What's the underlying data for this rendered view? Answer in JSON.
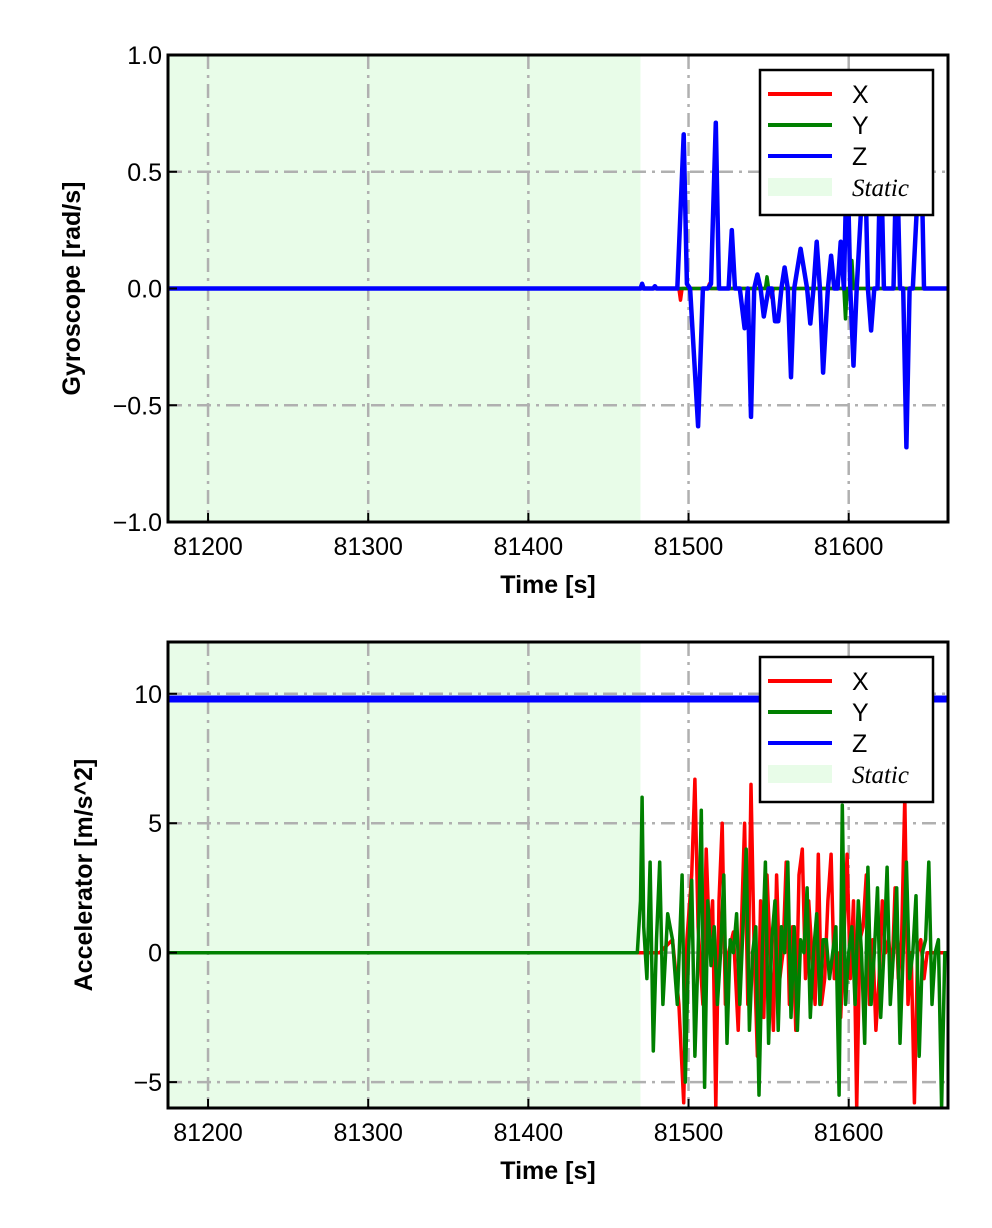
{
  "colors": {
    "x": "#ff0000",
    "y": "#008000",
    "z": "#0000ff",
    "static_region": "#e8fce8",
    "grid": "#b0b0b0"
  },
  "chart_data": [
    {
      "type": "line",
      "xlabel": "Time [s]",
      "ylabel": "Gyroscope [rad/s]",
      "xlim": [
        81175,
        81662
      ],
      "ylim": [
        -1.0,
        1.0
      ],
      "xticks": [
        81200,
        81300,
        81400,
        81500,
        81600
      ],
      "xtick_labels": [
        "81200",
        "81300",
        "81400",
        "81500",
        "81600"
      ],
      "yticks": [
        1.0,
        0.5,
        0.0,
        -0.5,
        -1.0
      ],
      "ytick_labels": [
        "1.0",
        "0.5",
        "0.0",
        "−0.5",
        "−1.0"
      ],
      "grid": true,
      "grid_style": "dash-dot",
      "legend_position": "top-right",
      "legend": [
        "X",
        "Y",
        "Z",
        "Static"
      ],
      "static_region": [
        81175,
        81470
      ],
      "series": [
        {
          "name": "X",
          "color": "#ff0000",
          "x": [
            81175,
            81494,
            81495,
            81496,
            81512,
            81513,
            81514,
            81551,
            81552,
            81553,
            81662
          ],
          "y": [
            0,
            0,
            -0.05,
            0,
            0,
            0.02,
            0,
            0,
            -0.04,
            0,
            0
          ]
        },
        {
          "name": "Y",
          "color": "#008000",
          "x": [
            81175,
            81548,
            81549,
            81550,
            81597,
            81598,
            81599,
            81601,
            81602,
            81603,
            81662
          ],
          "y": [
            0,
            0,
            0.05,
            0,
            0,
            -0.13,
            0,
            0,
            0.12,
            0,
            0
          ]
        },
        {
          "name": "Z",
          "color": "#0000ff",
          "x": [
            81175,
            81470,
            81471,
            81472,
            81473,
            81478,
            81479,
            81480,
            81493,
            81497,
            81499,
            81501,
            81506,
            81509,
            81512,
            81514,
            81517,
            81519,
            81521,
            81525,
            81527,
            81529,
            81532,
            81535,
            81537,
            81539,
            81541,
            81543,
            81545,
            81547,
            81550,
            81552,
            81554,
            81556,
            81558,
            81560,
            81562,
            81564,
            81566,
            81570,
            81574,
            81576,
            81578,
            81580,
            81582,
            81584,
            81587,
            81589,
            81591,
            81593,
            81595,
            81597,
            81599,
            81601,
            81603,
            81605,
            81610,
            81612,
            81614,
            81616,
            81618,
            81620,
            81622,
            81624,
            81626,
            81628,
            81630,
            81632,
            81634,
            81636,
            81638,
            81640,
            81645,
            81647,
            81649,
            81651,
            81653,
            81655,
            81662
          ],
          "y": [
            0,
            0,
            0.02,
            0,
            0,
            0,
            0.01,
            0,
            0,
            0.66,
            0.02,
            0,
            -0.59,
            0,
            0,
            0.02,
            0.71,
            0,
            0,
            0,
            0.25,
            0,
            0,
            -0.17,
            0,
            -0.55,
            0,
            0.06,
            0,
            -0.12,
            0,
            0,
            -0.14,
            -0.14,
            0,
            0.09,
            0,
            -0.38,
            0,
            0.17,
            0,
            -0.15,
            0,
            0.2,
            0,
            -0.36,
            0,
            0.14,
            0,
            0,
            0.2,
            0,
            0.62,
            0,
            -0.33,
            0,
            0.62,
            0,
            -0.18,
            0,
            0,
            0.62,
            0,
            0,
            0,
            0,
            0.62,
            0,
            0,
            -0.68,
            0,
            0,
            0.68,
            0,
            0,
            0,
            0,
            0,
            0
          ]
        }
      ]
    },
    {
      "type": "line",
      "xlabel": "Time [s]",
      "ylabel": "Accelerator [m/s^2]",
      "xlim": [
        81175,
        81662
      ],
      "ylim": [
        -6,
        12
      ],
      "xticks": [
        81200,
        81300,
        81400,
        81500,
        81600
      ],
      "xtick_labels": [
        "81200",
        "81300",
        "81400",
        "81500",
        "81600"
      ],
      "yticks": [
        10,
        5,
        0,
        -5
      ],
      "ytick_labels": [
        "10",
        "5",
        "0",
        "−5"
      ],
      "grid": true,
      "grid_style": "dash-dot",
      "legend_position": "top-right",
      "legend": [
        "X",
        "Y",
        "Z",
        "Static"
      ],
      "static_region": [
        81175,
        81470
      ],
      "series": [
        {
          "name": "X",
          "color": "#ff0000",
          "x": [
            81175,
            81470,
            81482,
            81490,
            81494,
            81497,
            81499,
            81502,
            81504,
            81506,
            81509,
            81511,
            81513,
            81515,
            81517,
            81519,
            81521,
            81523,
            81525,
            81528,
            81531,
            81533,
            81535,
            81537,
            81539,
            81541,
            81543,
            81545,
            81547,
            81549,
            81551,
            81553,
            81555,
            81557,
            81559,
            81561,
            81563,
            81565,
            81567,
            81569,
            81571,
            81573,
            81575,
            81577,
            81579,
            81581,
            81583,
            81585,
            81587,
            81589,
            81591,
            81593,
            81595,
            81597,
            81599,
            81601,
            81603,
            81605,
            81607,
            81609,
            81611,
            81613,
            81615,
            81617,
            81619,
            81621,
            81623,
            81625,
            81627,
            81629,
            81631,
            81633,
            81635,
            81637,
            81639,
            81641,
            81643,
            81645,
            81647,
            81649,
            81651,
            81653,
            81655,
            81657,
            81659,
            81662
          ],
          "y": [
            0,
            0,
            0,
            0.5,
            -2,
            -5.8,
            0.5,
            3,
            6.7,
            1,
            -2,
            4,
            0.5,
            2,
            -6,
            2,
            5,
            -2,
            0,
            0.8,
            -3,
            1,
            5,
            -2,
            6.5,
            0,
            -4,
            2,
            -2.5,
            3,
            0,
            -3,
            3,
            -1,
            0,
            3.5,
            -2,
            1,
            -3,
            3,
            4,
            -1,
            2,
            0,
            -2,
            3.8,
            -2,
            -1,
            2,
            3.8,
            -1,
            0,
            -2.5,
            0.5,
            3.8,
            -1,
            2,
            -6,
            0.5,
            1,
            3,
            -2,
            0.5,
            -3,
            -1,
            2,
            0,
            0.5,
            -1,
            2.5,
            -1,
            0.5,
            6,
            -2,
            0,
            -5.8,
            0,
            0.5,
            -1,
            0,
            0,
            0,
            0,
            0,
            0,
            0
          ]
        },
        {
          "name": "Y",
          "color": "#008000",
          "x": [
            81175,
            81468,
            81470,
            81471,
            81472,
            81474,
            81476,
            81478,
            81480,
            81482,
            81484,
            81487,
            81490,
            81493,
            81496,
            81498,
            81500,
            81502,
            81504,
            81506,
            81508,
            81510,
            81512,
            81514,
            81516,
            81518,
            81520,
            81522,
            81524,
            81526,
            81528,
            81530,
            81532,
            81534,
            81536,
            81538,
            81540,
            81542,
            81544,
            81546,
            81548,
            81550,
            81552,
            81554,
            81556,
            81558,
            81560,
            81562,
            81564,
            81566,
            81568,
            81570,
            81572,
            81574,
            81576,
            81578,
            81580,
            81582,
            81584,
            81586,
            81588,
            81590,
            81592,
            81594,
            81596,
            81598,
            81600,
            81602,
            81604,
            81606,
            81608,
            81610,
            81612,
            81614,
            81616,
            81618,
            81620,
            81622,
            81624,
            81626,
            81628,
            81630,
            81632,
            81634,
            81636,
            81638,
            81640,
            81642,
            81644,
            81646,
            81648,
            81650,
            81652,
            81654,
            81656,
            81658,
            81660,
            81662
          ],
          "y": [
            0,
            0,
            2,
            6,
            1,
            -1,
            3.5,
            -3.8,
            0.5,
            3.5,
            -2,
            1.5,
            0.5,
            -2,
            3,
            -5,
            0,
            2.8,
            -4,
            0,
            5.5,
            -5.2,
            2,
            -0.5,
            1,
            -2,
            0,
            3,
            -3.5,
            0.5,
            0,
            1.5,
            -2,
            1,
            4,
            -3,
            0,
            1,
            -5.5,
            0,
            3.5,
            -3.5,
            0.5,
            2,
            -3,
            1,
            0,
            3.5,
            -2.5,
            1,
            -3,
            0.5,
            0,
            2.5,
            -2.5,
            0,
            1.5,
            -2,
            0.5,
            0.5,
            -1,
            0,
            1,
            -5.5,
            5.7,
            -2,
            0,
            1,
            -2,
            2,
            0,
            -3.5,
            3.3,
            -2,
            0,
            2.5,
            -2.5,
            0,
            3.3,
            -2,
            0,
            2.5,
            -3.5,
            0,
            3.5,
            -1,
            0,
            2.2,
            -4,
            0,
            0.5,
            3.5,
            -2,
            0,
            0.5,
            -6,
            0,
            0
          ]
        },
        {
          "name": "Z",
          "color": "#0000ff",
          "x": [
            81175,
            81662
          ],
          "y": [
            9.8,
            9.8
          ]
        }
      ]
    }
  ]
}
